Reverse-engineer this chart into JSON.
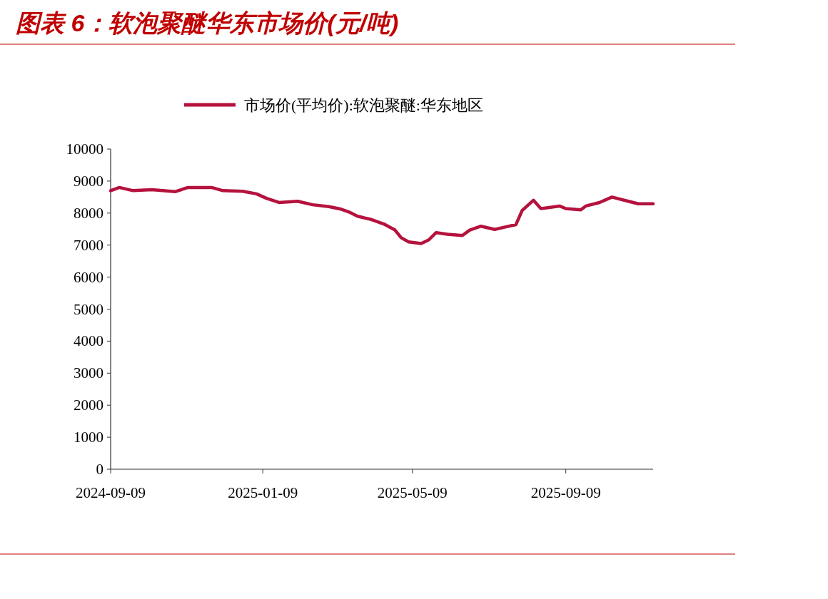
{
  "chart_data": {
    "type": "line",
    "title": "图表 6：软泡聚醚华东市场价(元/吨)",
    "x": [
      "2024-09-09",
      "2024-09-16",
      "2024-09-27",
      "2024-10-12",
      "2024-10-31",
      "2024-11-10",
      "2024-11-29",
      "2024-12-08",
      "2024-12-24",
      "2025-01-04",
      "2025-01-12",
      "2025-01-22",
      "2025-02-06",
      "2025-02-18",
      "2025-03-03",
      "2025-03-12",
      "2025-03-20",
      "2025-03-26",
      "2025-04-06",
      "2025-04-16",
      "2025-04-25",
      "2025-04-30",
      "2025-05-06",
      "2025-05-16",
      "2025-05-22",
      "2025-05-28",
      "2025-06-06",
      "2025-06-18",
      "2025-06-24",
      "2025-07-03",
      "2025-07-14",
      "2025-07-23",
      "2025-07-31",
      "2025-08-05",
      "2025-08-14",
      "2025-08-20",
      "2025-09-04",
      "2025-09-09",
      "2025-09-21",
      "2025-09-25",
      "2025-10-06",
      "2025-10-16",
      "2025-10-28",
      "2025-11-06",
      "2025-11-18"
    ],
    "series": [
      {
        "name": "市场价(平均价):软泡聚醚:华东地区",
        "color": "#b5123d",
        "values": [
          8700,
          8800,
          8700,
          8730,
          8670,
          8800,
          8800,
          8700,
          8680,
          8600,
          8460,
          8330,
          8370,
          8260,
          8200,
          8130,
          8020,
          7900,
          7800,
          7660,
          7470,
          7230,
          7100,
          7050,
          7160,
          7390,
          7340,
          7300,
          7470,
          7590,
          7490,
          7570,
          7640,
          8080,
          8400,
          8140,
          8220,
          8140,
          8100,
          8220,
          8330,
          8500,
          8380,
          8290,
          8290
        ]
      }
    ],
    "xlim": [
      "2024-09-09",
      "2025-11-18"
    ],
    "xticks": [
      {
        "value": "2024-09-09",
        "label": "2024-09-09"
      },
      {
        "value": "2025-01-09",
        "label": "2025-01-09"
      },
      {
        "value": "2025-05-09",
        "label": "2025-05-09"
      },
      {
        "value": "2025-09-09",
        "label": "2025-09-09"
      }
    ],
    "ylim": [
      0,
      10000
    ],
    "yticks": [
      0,
      1000,
      2000,
      3000,
      4000,
      5000,
      6000,
      7000,
      8000,
      9000,
      10000
    ],
    "legend": "top",
    "marker": "none",
    "line_style": "solid"
  }
}
